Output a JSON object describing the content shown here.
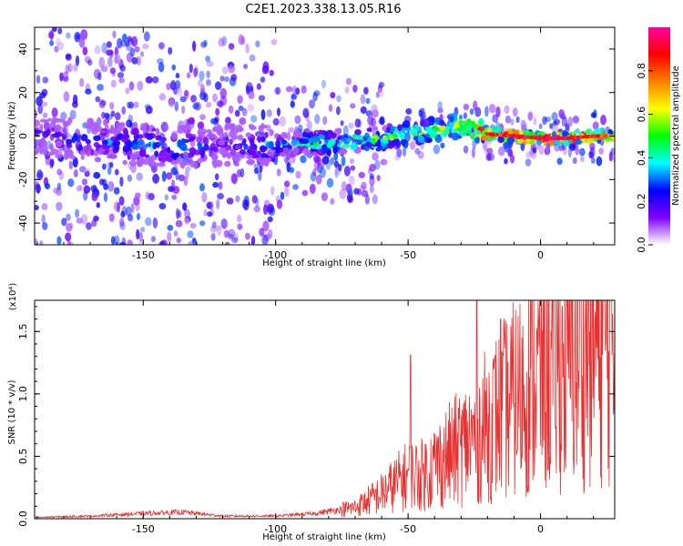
{
  "title": "C2E1.2023.338.13.05.R16",
  "chart_data": [
    {
      "type": "heatmap",
      "xlabel": "Height of straight line (km)",
      "ylabel": "Frequency (Hz)",
      "xlim": [
        -191,
        28
      ],
      "ylim": [
        -50,
        50
      ],
      "xticks": [
        -150,
        -100,
        -50,
        0
      ],
      "xtick_labels": [
        "-150",
        "-100",
        "-50",
        "0"
      ],
      "yticks": [
        -40,
        -20,
        0,
        20,
        40
      ],
      "ytick_labels": [
        "-40",
        "-20",
        "0",
        "20",
        "40"
      ],
      "colorbar": {
        "label": "Normalized spectral amplitude",
        "range": [
          0,
          1
        ],
        "ticks": [
          0,
          0.2,
          0.4,
          0.6,
          0.8
        ],
        "tick_labels": [
          "0.0",
          "0.2",
          "0.4",
          "0.6",
          "0.8"
        ],
        "colormap": [
          "#ffffff",
          "#7f00ff",
          "#0000ff",
          "#00ffff",
          "#00ff00",
          "#ffff00",
          "#ff8000",
          "#ff0000",
          "#ff00a0"
        ]
      },
      "ridge": {
        "x": [
          -190,
          -170,
          -150,
          -135,
          -120,
          -100,
          -80,
          -60,
          -40,
          -28,
          -20,
          -10,
          0,
          10,
          20,
          28
        ],
        "y": [
          0,
          -2,
          -4,
          -5,
          -4,
          -4,
          -3,
          -1,
          3,
          5,
          1,
          0,
          -1,
          -1,
          0,
          0
        ],
        "peak_amplitude": [
          0.25,
          0.3,
          0.35,
          0.38,
          0.2,
          0.4,
          0.5,
          0.55,
          0.6,
          0.65,
          0.9,
          1.0,
          1.0,
          1.0,
          0.9,
          0.75
        ]
      }
    },
    {
      "type": "line",
      "xlabel": "Height of straight line (km)",
      "ylabel": "SNR (10 * v/v)",
      "yscale_label": "(x10⁴)",
      "xlim": [
        -191,
        28
      ],
      "ylim": [
        0,
        1.75
      ],
      "xticks": [
        -150,
        -100,
        -50,
        0
      ],
      "xtick_labels": [
        "-150",
        "-100",
        "-50",
        "0"
      ],
      "yticks": [
        0,
        0.5,
        1.0,
        1.5
      ],
      "ytick_labels": [
        "0.0",
        "0.5",
        "1.0",
        "1.5"
      ],
      "line_color": "#e83030",
      "series": [
        {
          "x": [
            -191,
            -170,
            -150,
            -135,
            -120,
            -100,
            -85,
            -70,
            -60,
            -50,
            -45,
            -35,
            -25,
            -20,
            -15,
            -10,
            -5,
            0,
            10,
            20,
            28
          ],
          "y": [
            0.01,
            0.02,
            0.04,
            0.05,
            0.02,
            0.02,
            0.04,
            0.09,
            0.2,
            0.35,
            0.35,
            0.5,
            0.65,
            0.75,
            0.85,
            0.95,
            1.05,
            1.15,
            1.25,
            1.4,
            1.45
          ]
        }
      ],
      "spikes": [
        {
          "x": -49,
          "y": 1.31
        },
        {
          "x": -24,
          "y": 1.75
        },
        {
          "x": -15,
          "y": 1.6
        }
      ]
    }
  ]
}
